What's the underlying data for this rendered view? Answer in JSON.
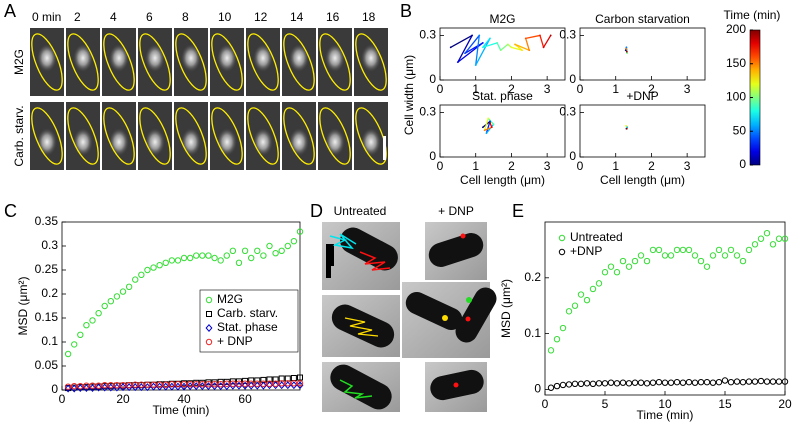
{
  "panels": {
    "A": {
      "label": "A",
      "time_labels": [
        "0 min",
        "2",
        "4",
        "6",
        "8",
        "10",
        "12",
        "14",
        "16",
        "18"
      ],
      "row_labels": [
        "M2G",
        "Carb. starv."
      ]
    },
    "D": {
      "label": "D",
      "column_labels": [
        "Untreated",
        "+ DNP"
      ]
    }
  },
  "chart_data": [
    {
      "type": "trajectory",
      "panel": "B",
      "ylabel": "Cell width (μm)",
      "xlabel": "Cell length (μm)",
      "xlim": [
        0,
        3.5
      ],
      "xticks": [
        0,
        1,
        2,
        3
      ],
      "ylim": [
        0,
        0.35
      ],
      "yticks": [
        0,
        0.3
      ],
      "colorbar": {
        "label": "Time (min)",
        "lim": [
          0,
          200
        ],
        "ticks": [
          0,
          50,
          100,
          150,
          200
        ],
        "colormap": "jet"
      },
      "subplots": [
        {
          "title": "M2G",
          "x": [
            0.3,
            0.9,
            0.5,
            1.2,
            0.7,
            1.1,
            1.0,
            1.4,
            1.2,
            1.6,
            1.7,
            1.9,
            2.0,
            2.3,
            2.1,
            2.5,
            2.4,
            2.8,
            2.9,
            3.1
          ],
          "y": [
            0.22,
            0.3,
            0.12,
            0.25,
            0.18,
            0.3,
            0.1,
            0.28,
            0.22,
            0.25,
            0.2,
            0.24,
            0.22,
            0.2,
            0.24,
            0.2,
            0.28,
            0.3,
            0.22,
            0.3
          ],
          "t": [
            0,
            10,
            20,
            30,
            40,
            50,
            60,
            70,
            80,
            90,
            100,
            110,
            120,
            130,
            140,
            150,
            160,
            170,
            180,
            190
          ]
        },
        {
          "title": "Carbon starvation",
          "x": [
            1.28,
            1.3,
            1.32,
            1.29,
            1.31
          ],
          "y": [
            0.2,
            0.22,
            0.18,
            0.21,
            0.19
          ],
          "t": [
            0,
            50,
            100,
            150,
            200
          ]
        },
        {
          "title": "Stat. phase",
          "x": [
            1.2,
            1.4,
            1.3,
            1.5,
            1.35,
            1.25,
            1.45,
            1.4
          ],
          "y": [
            0.2,
            0.24,
            0.16,
            0.22,
            0.26,
            0.18,
            0.2,
            0.23
          ],
          "t": [
            0,
            30,
            60,
            90,
            120,
            150,
            180,
            200
          ]
        },
        {
          "title": "+DNP",
          "x": [
            1.3,
            1.32,
            1.29,
            1.31
          ],
          "y": [
            0.19,
            0.2,
            0.21,
            0.19
          ],
          "t": [
            0,
            60,
            120,
            200
          ]
        }
      ]
    },
    {
      "type": "scatter",
      "panel": "C",
      "xlabel": "Time (min)",
      "ylabel": "MSD (μm²)",
      "xlim": [
        0,
        78
      ],
      "xticks": [
        0,
        20,
        40,
        60
      ],
      "ylim": [
        0,
        0.35
      ],
      "yticks": [
        0,
        0.05,
        0.1,
        0.15,
        0.2,
        0.25,
        0.3,
        0.35
      ],
      "legend": "lower right",
      "x": [
        2,
        4,
        6,
        8,
        10,
        12,
        14,
        16,
        18,
        20,
        22,
        24,
        26,
        28,
        30,
        32,
        34,
        36,
        38,
        40,
        42,
        44,
        46,
        48,
        50,
        52,
        54,
        56,
        58,
        60,
        62,
        64,
        66,
        68,
        70,
        72,
        74,
        76,
        78
      ],
      "series": [
        {
          "name": "M2G",
          "color": "#33dd33",
          "marker": "o",
          "values": [
            0.075,
            0.095,
            0.115,
            0.135,
            0.145,
            0.16,
            0.175,
            0.185,
            0.195,
            0.205,
            0.215,
            0.23,
            0.24,
            0.25,
            0.255,
            0.26,
            0.265,
            0.27,
            0.27,
            0.275,
            0.275,
            0.28,
            0.28,
            0.28,
            0.275,
            0.27,
            0.28,
            0.29,
            0.265,
            0.29,
            0.275,
            0.29,
            0.28,
            0.3,
            0.285,
            0.29,
            0.3,
            0.31,
            0.33
          ]
        },
        {
          "name": "Carb. starv.",
          "color": "#000000",
          "marker": "s",
          "values": [
            0.004,
            0.005,
            0.006,
            0.006,
            0.007,
            0.007,
            0.008,
            0.008,
            0.009,
            0.009,
            0.01,
            0.01,
            0.01,
            0.011,
            0.011,
            0.012,
            0.012,
            0.013,
            0.013,
            0.014,
            0.014,
            0.015,
            0.015,
            0.016,
            0.016,
            0.017,
            0.017,
            0.018,
            0.018,
            0.019,
            0.02,
            0.02,
            0.021,
            0.022,
            0.022,
            0.024,
            0.024,
            0.025,
            0.026
          ]
        },
        {
          "name": "Stat. phase",
          "color": "#0000cc",
          "marker": "d",
          "values": [
            0.003,
            0.003,
            0.004,
            0.004,
            0.004,
            0.005,
            0.005,
            0.005,
            0.005,
            0.006,
            0.006,
            0.006,
            0.006,
            0.006,
            0.007,
            0.007,
            0.007,
            0.007,
            0.007,
            0.007,
            0.008,
            0.008,
            0.008,
            0.008,
            0.008,
            0.008,
            0.008,
            0.009,
            0.009,
            0.009,
            0.009,
            0.009,
            0.009,
            0.01,
            0.01,
            0.01,
            0.01,
            0.01,
            0.01
          ]
        },
        {
          "name": "+ DNP",
          "color": "#ee2222",
          "marker": "o",
          "values": [
            0.007,
            0.008,
            0.008,
            0.009,
            0.009,
            0.009,
            0.01,
            0.01,
            0.01,
            0.01,
            0.01,
            0.011,
            0.011,
            0.011,
            0.011,
            0.011,
            0.011,
            0.012,
            0.012,
            0.012,
            0.012,
            0.012,
            0.012,
            0.012,
            0.012,
            0.012,
            0.013,
            0.013,
            0.013,
            0.013,
            0.013,
            0.013,
            0.013,
            0.013,
            0.013,
            0.014,
            0.014,
            0.014,
            0.014
          ]
        }
      ]
    },
    {
      "type": "scatter",
      "panel": "E",
      "xlabel": "Time (min)",
      "ylabel": "MSD (μm²)",
      "xlim": [
        0,
        20
      ],
      "xticks": [
        0,
        5,
        10,
        15,
        20
      ],
      "ylim": [
        -0.01,
        0.3
      ],
      "yticks": [
        0,
        0.1,
        0.2
      ],
      "legend": "upper left",
      "x": [
        0.5,
        1,
        1.5,
        2,
        2.5,
        3,
        3.5,
        4,
        4.5,
        5,
        5.5,
        6,
        6.5,
        7,
        7.5,
        8,
        8.5,
        9,
        9.5,
        10,
        10.5,
        11,
        11.5,
        12,
        12.5,
        13,
        13.5,
        14,
        14.5,
        15,
        15.5,
        16,
        16.5,
        17,
        17.5,
        18,
        18.5,
        19,
        19.5,
        20
      ],
      "series": [
        {
          "name": "Untreated",
          "color": "#33dd33",
          "marker": "o",
          "values": [
            0.07,
            0.09,
            0.11,
            0.14,
            0.15,
            0.17,
            0.16,
            0.18,
            0.19,
            0.21,
            0.22,
            0.21,
            0.23,
            0.22,
            0.23,
            0.24,
            0.23,
            0.25,
            0.25,
            0.24,
            0.24,
            0.25,
            0.25,
            0.25,
            0.24,
            0.23,
            0.22,
            0.24,
            0.25,
            0.24,
            0.25,
            0.24,
            0.23,
            0.25,
            0.26,
            0.27,
            0.28,
            0.26,
            0.27,
            0.27
          ]
        },
        {
          "name": "+DNP",
          "color": "#000000",
          "marker": "o",
          "values": [
            0.003,
            0.006,
            0.008,
            0.009,
            0.01,
            0.01,
            0.011,
            0.01,
            0.011,
            0.011,
            0.012,
            0.011,
            0.012,
            0.011,
            0.012,
            0.012,
            0.011,
            0.012,
            0.013,
            0.012,
            0.012,
            0.013,
            0.012,
            0.013,
            0.012,
            0.013,
            0.013,
            0.012,
            0.013,
            0.016,
            0.013,
            0.014,
            0.013,
            0.014,
            0.014,
            0.015,
            0.014,
            0.014,
            0.014,
            0.014
          ]
        }
      ]
    }
  ]
}
